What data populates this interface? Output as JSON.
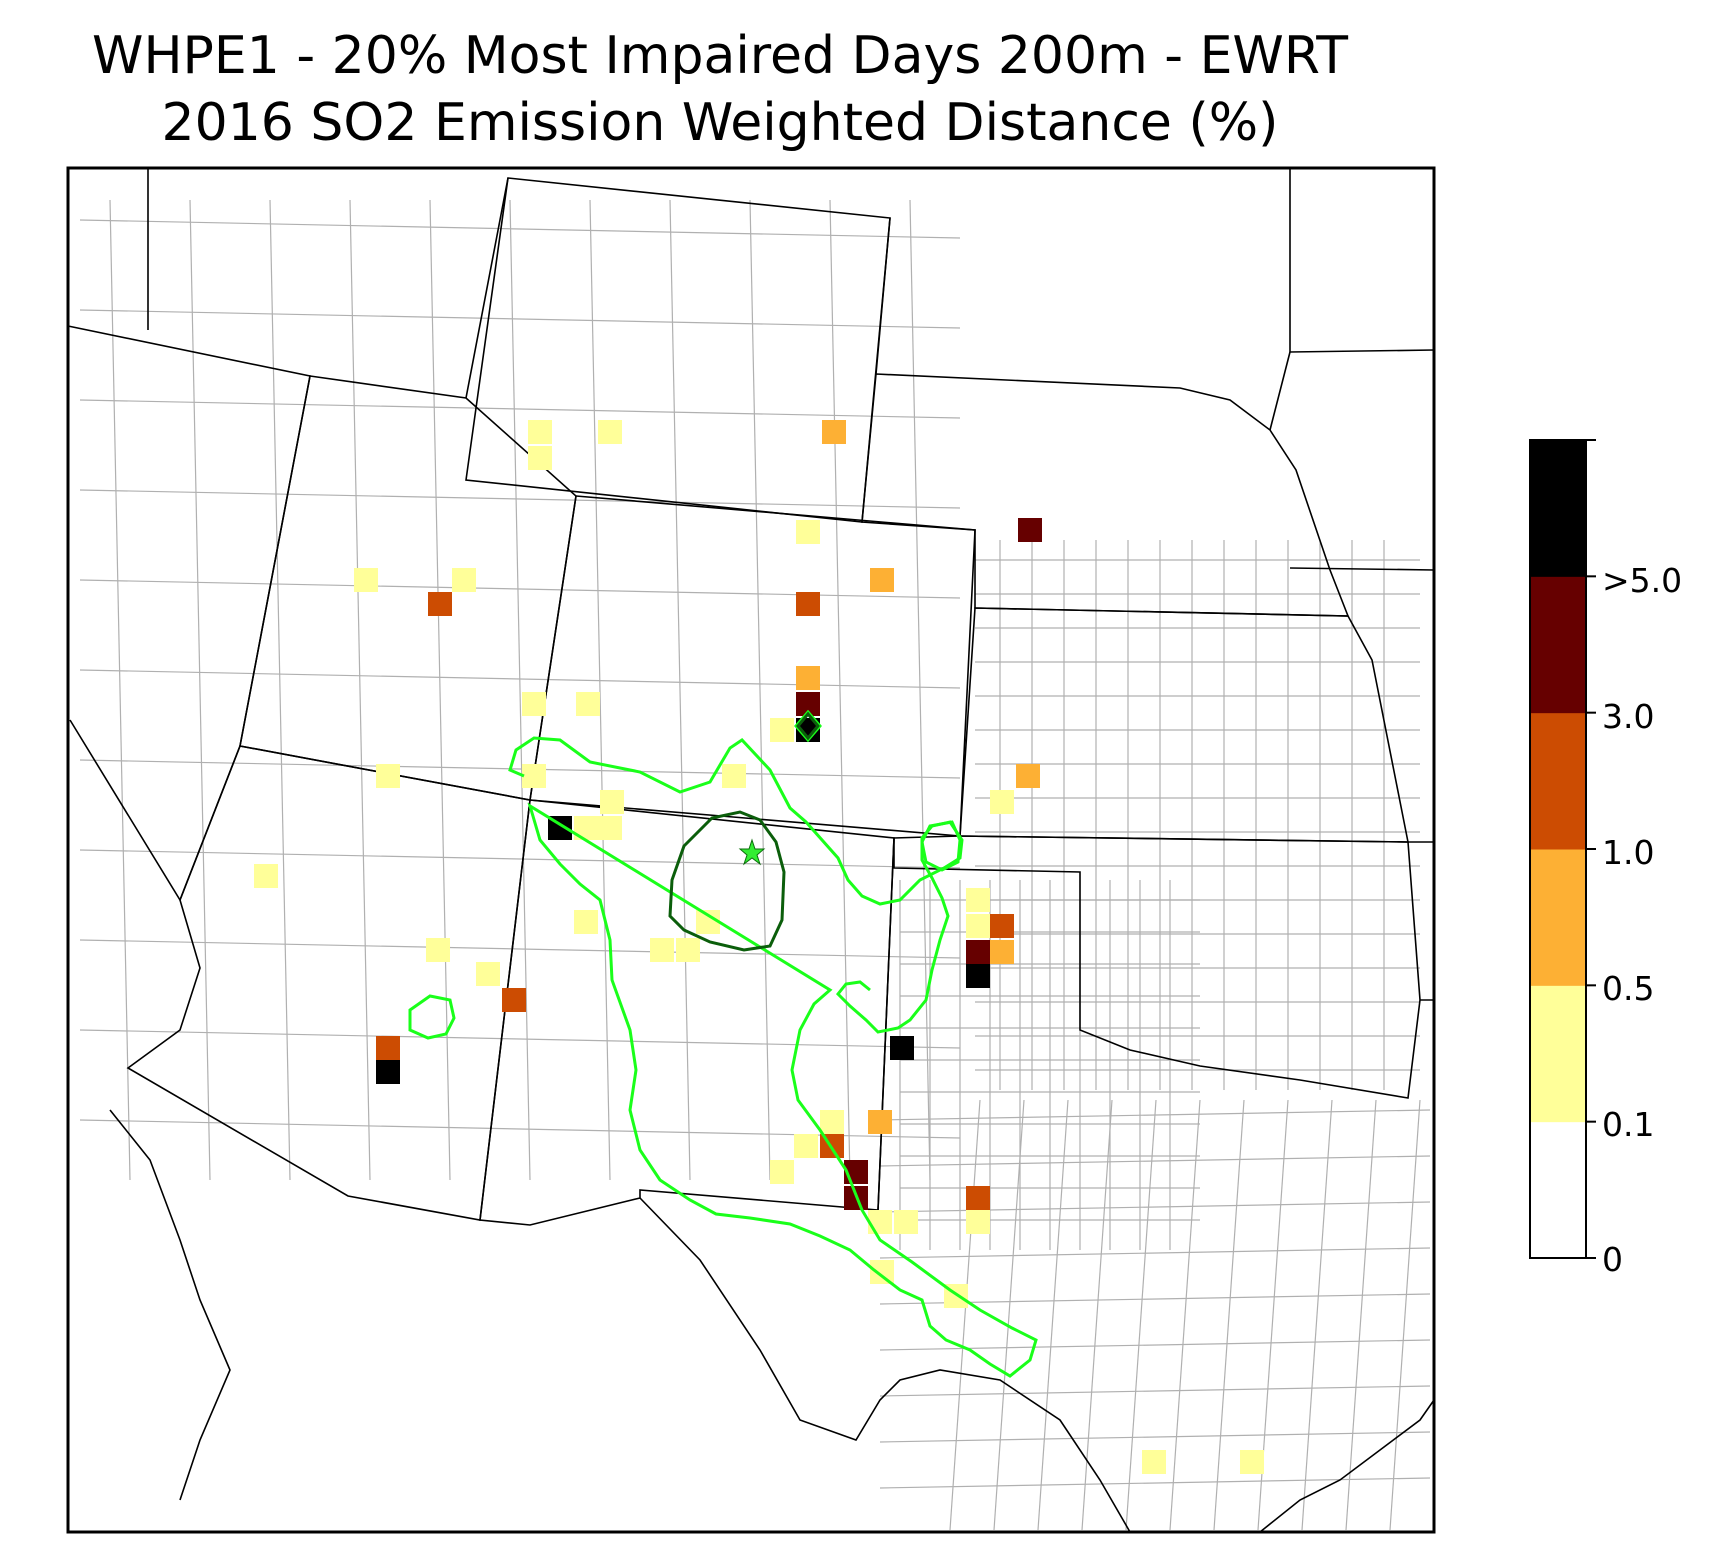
{
  "title": {
    "line1": "WHPE1 - 20% Most Impaired Days 200m - EWRT",
    "line2": "2016 SO2 Emission Weighted Distance (%)"
  },
  "colorbar": {
    "labels": [
      "0",
      "0.1",
      "0.5",
      "1.0",
      "3.0",
      ">5.0"
    ],
    "colors": [
      "#ffffff",
      "#ffff99",
      "#fdb034",
      "#cc4c02",
      "#660000",
      "#000000"
    ]
  },
  "contour_colors": {
    "outer": "#1aff1a",
    "inner": "#0b5e0b"
  },
  "site_marker_color": "#33ee33",
  "border_colors": {
    "state": "#000000",
    "county": "#aaaaaa"
  }
}
